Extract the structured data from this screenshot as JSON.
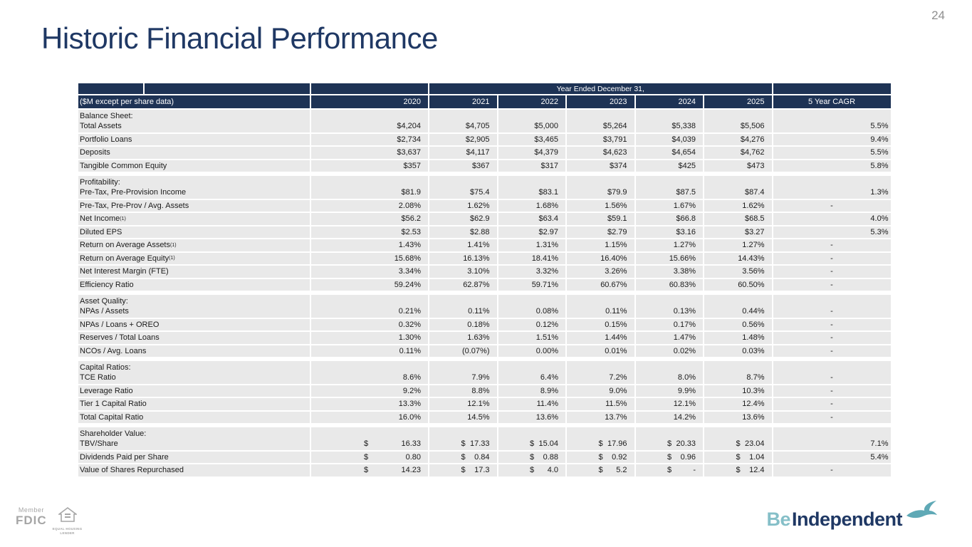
{
  "page_number": "24",
  "title": "Historic Financial Performance",
  "colors": {
    "header_navy": "#1e3355",
    "title_navy": "#1f3864",
    "row_gray": "#e9e9e9",
    "brand_teal": "#85bfc8",
    "bird_teal": "#5fa9b6",
    "footer_gray": "#a6a6a6"
  },
  "table": {
    "banner": "Year Ended December 31,",
    "label_header": "($M except per share data)",
    "year_headers": [
      "2020",
      "2021",
      "2022",
      "2023",
      "2024",
      "2025"
    ],
    "cagr_header": "5 Year CAGR",
    "sections": [
      {
        "title": "Balance Sheet:",
        "rows": [
          {
            "label": "Total Assets",
            "values": [
              "$4,204",
              "$4,705",
              "$5,000",
              "$5,264",
              "$5,338",
              "$5,506"
            ],
            "cagr": "5.5%"
          },
          {
            "label": "Portfolio Loans",
            "values": [
              "$2,734",
              "$2,905",
              "$3,465",
              "$3,791",
              "$4,039",
              "$4,276"
            ],
            "cagr": "9.4%"
          },
          {
            "label": "Deposits",
            "values": [
              "$3,637",
              "$4,117",
              "$4,379",
              "$4,623",
              "$4,654",
              "$4,762"
            ],
            "cagr": "5.5%"
          },
          {
            "label": "Tangible Common Equity",
            "values": [
              "$357",
              "$367",
              "$317",
              "$374",
              "$425",
              "$473"
            ],
            "cagr": "5.8%"
          }
        ]
      },
      {
        "title": "Profitability:",
        "rows": [
          {
            "label": "Pre-Tax, Pre-Provision Income",
            "values": [
              "$81.9",
              "$75.4",
              "$83.1",
              "$79.9",
              "$87.5",
              "$87.4"
            ],
            "cagr": "1.3%"
          },
          {
            "label": "Pre-Tax, Pre-Prov / Avg. Assets",
            "values": [
              "2.08%",
              "1.62%",
              "1.68%",
              "1.56%",
              "1.67%",
              "1.62%"
            ],
            "cagr": "-"
          },
          {
            "label": "Net Income",
            "sup": "(1)",
            "values": [
              "$56.2",
              "$62.9",
              "$63.4",
              "$59.1",
              "$66.8",
              "$68.5"
            ],
            "cagr": "4.0%"
          },
          {
            "label": "Diluted EPS",
            "values": [
              "$2.53",
              "$2.88",
              "$2.97",
              "$2.79",
              "$3.16",
              "$3.27"
            ],
            "cagr": "5.3%"
          },
          {
            "label": "Return on Average Assets",
            "sup": "(1)",
            "values": [
              "1.43%",
              "1.41%",
              "1.31%",
              "1.15%",
              "1.27%",
              "1.27%"
            ],
            "cagr": "-"
          },
          {
            "label": "Return on Average Equity",
            "sup": "(1)",
            "values": [
              "15.68%",
              "16.13%",
              "18.41%",
              "16.40%",
              "15.66%",
              "14.43%"
            ],
            "cagr": "-"
          },
          {
            "label": "Net Interest Margin (FTE)",
            "values": [
              "3.34%",
              "3.10%",
              "3.32%",
              "3.26%",
              "3.38%",
              "3.56%"
            ],
            "cagr": "-"
          },
          {
            "label": "Efficiency Ratio",
            "values": [
              "59.24%",
              "62.87%",
              "59.71%",
              "60.67%",
              "60.83%",
              "60.50%"
            ],
            "cagr": "-"
          }
        ]
      },
      {
        "title": "Asset Quality:",
        "rows": [
          {
            "label": "NPAs / Assets",
            "values": [
              "0.21%",
              "0.11%",
              "0.08%",
              "0.11%",
              "0.13%",
              "0.44%"
            ],
            "cagr": "-"
          },
          {
            "label": "NPAs / Loans + OREO",
            "values": [
              "0.32%",
              "0.18%",
              "0.12%",
              "0.15%",
              "0.17%",
              "0.56%"
            ],
            "cagr": "-"
          },
          {
            "label": "Reserves / Total Loans",
            "values": [
              "1.30%",
              "1.63%",
              "1.51%",
              "1.44%",
              "1.47%",
              "1.48%"
            ],
            "cagr": "-"
          },
          {
            "label": "NCOs / Avg. Loans",
            "values": [
              "0.11%",
              "(0.07%)",
              "0.00%",
              "0.01%",
              "0.02%",
              "0.03%"
            ],
            "cagr": "-"
          }
        ]
      },
      {
        "title": "Capital Ratios:",
        "rows": [
          {
            "label": "TCE Ratio",
            "values": [
              "8.6%",
              "7.9%",
              "6.4%",
              "7.2%",
              "8.0%",
              "8.7%"
            ],
            "cagr": "-"
          },
          {
            "label": "Leverage Ratio",
            "values": [
              "9.2%",
              "8.8%",
              "8.9%",
              "9.0%",
              "9.9%",
              "10.3%"
            ],
            "cagr": "-"
          },
          {
            "label": "Tier 1 Capital Ratio",
            "values": [
              "13.3%",
              "12.1%",
              "11.4%",
              "11.5%",
              "12.1%",
              "12.4%"
            ],
            "cagr": "-"
          },
          {
            "label": "Total Capital Ratio",
            "values": [
              "16.0%",
              "14.5%",
              "13.6%",
              "13.7%",
              "14.2%",
              "13.6%"
            ],
            "cagr": "-"
          }
        ]
      },
      {
        "title": "Shareholder Value:",
        "rows": [
          {
            "label": "TBV/Share",
            "accounting": true,
            "values": [
              "16.33",
              "17.33",
              "15.04",
              "17.96",
              "20.33",
              "23.04"
            ],
            "cagr": "7.1%"
          },
          {
            "label": "Dividends Paid per Share",
            "accounting": true,
            "values": [
              "0.80",
              "0.84",
              "0.88",
              "0.92",
              "0.96",
              "1.04"
            ],
            "cagr": "5.4%"
          },
          {
            "label": "Value of Shares Repurchased",
            "accounting": true,
            "values": [
              "14.23",
              "17.3",
              "4.0",
              "5.2",
              "-",
              "12.4"
            ],
            "cagr": "-"
          }
        ]
      }
    ],
    "currency_symbol": "$"
  },
  "footer": {
    "member_label": "Member",
    "fdic_label": "FDIC",
    "ehl_line1": "EQUAL HOUSING",
    "ehl_line2": "LENDER",
    "brand": {
      "be": "Be",
      "independent": "Independent"
    }
  }
}
